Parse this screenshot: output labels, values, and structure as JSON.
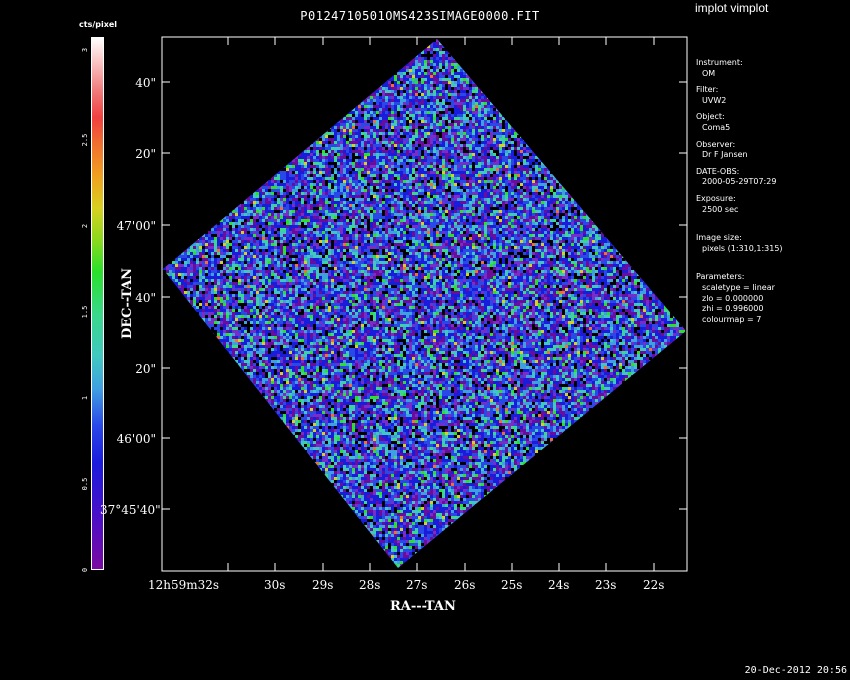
{
  "window": {
    "title": "P0124710501OMS423SIMAGE0000.FIT",
    "app_label": "implot vimplot"
  },
  "colorbar": {
    "title": "cts/pixel",
    "ticks": [
      "0",
      "0.5",
      "1",
      "1.5",
      "2",
      "2.5",
      "3"
    ],
    "tick_values": [
      0,
      0.5,
      1,
      1.5,
      2,
      2.5,
      3
    ],
    "range": [
      0,
      3.1
    ]
  },
  "axes": {
    "y_title": "DEC--TAN",
    "x_title": "RA---TAN",
    "y_ticks": [
      "40\"",
      "20\"",
      "47'00\"",
      "40\"",
      "20\"",
      "46'00\"",
      "37°45'40\""
    ],
    "x_ticks": [
      "12h59m32s",
      "30s",
      "29s",
      "28s",
      "27s",
      "26s",
      "25s",
      "24s",
      "23s",
      "22s"
    ]
  },
  "info": {
    "instrument_label": "Instrument:",
    "instrument_value": "OM",
    "filter_label": "Filter:",
    "filter_value": "UVW2",
    "object_label": "Object:",
    "object_value": "Coma5",
    "observer_label": "Observer:",
    "observer_value": "Dr F Jansen",
    "date_label": "DATE-OBS:",
    "date_value": "2000-05-29T07:29",
    "exposure_label": "Exposure:",
    "exposure_value": "2500 sec",
    "imgsize_label": "Image size:",
    "imgsize_value": "pixels (1:310,1:315)",
    "params_label": "Parameters:",
    "param_scale": "scaletype = linear",
    "param_zlo": "zlo = 0.000000",
    "param_zhi": "zhi = 0.996000",
    "param_cmap": "colourmap =   7"
  },
  "footer": {
    "date": "20-Dec-2012 20:56"
  },
  "colors": {
    "background": "#000000",
    "frame": "#ffffff",
    "image_base": "#3a2fd8"
  }
}
